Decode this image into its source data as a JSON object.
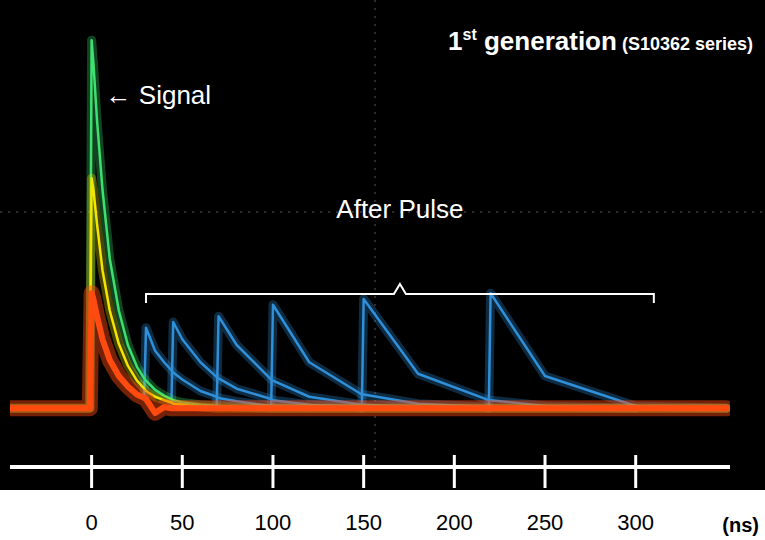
{
  "chart_data": {
    "type": "line",
    "title": "1st generation",
    "subtitle": "(S10362 series)",
    "x_label": "(ns)",
    "annotations": [
      {
        "text": "← Signal"
      },
      {
        "text": "After Pulse",
        "x_range": [
          30,
          310
        ]
      }
    ],
    "x": [
      -45,
      -10,
      -1,
      0,
      1,
      3,
      6,
      10,
      15,
      20,
      25,
      29,
      30,
      35,
      40,
      44,
      45,
      50,
      60,
      69,
      70,
      80,
      99,
      100,
      120,
      149,
      150,
      180,
      219,
      220,
      250,
      300,
      350
    ],
    "series": [
      {
        "color": "#2f8fd8",
        "values": [
          null,
          null,
          null,
          null,
          null,
          null,
          null,
          null,
          null,
          null,
          null,
          0.1,
          0.7,
          0.5,
          0.4,
          0.33,
          0.31,
          0.25,
          0.15,
          0.1,
          0.09,
          0.06,
          0.02,
          0.02,
          0.01,
          null,
          null,
          null,
          null,
          null,
          null,
          null,
          null
        ]
      },
      {
        "color": "#2f8fd8",
        "values": [
          null,
          null,
          null,
          null,
          null,
          null,
          null,
          null,
          null,
          null,
          null,
          null,
          null,
          null,
          null,
          0.05,
          0.75,
          0.6,
          0.4,
          0.27,
          0.26,
          0.17,
          0.08,
          0.07,
          0.03,
          0.01,
          null,
          null,
          null,
          null,
          null,
          null,
          null
        ]
      },
      {
        "color": "#2f8fd8",
        "values": [
          null,
          null,
          null,
          null,
          null,
          null,
          null,
          null,
          null,
          null,
          null,
          null,
          null,
          null,
          null,
          null,
          null,
          null,
          null,
          0.03,
          0.8,
          0.55,
          0.25,
          0.24,
          0.1,
          0.03,
          0.03,
          0.01,
          null,
          null,
          null,
          null,
          null
        ]
      },
      {
        "color": "#2f8fd8",
        "values": [
          null,
          null,
          null,
          null,
          null,
          null,
          null,
          null,
          null,
          null,
          null,
          null,
          null,
          null,
          null,
          null,
          null,
          null,
          null,
          null,
          null,
          null,
          0.01,
          0.9,
          0.4,
          0.12,
          0.12,
          0.04,
          0.01,
          null,
          null,
          null,
          null
        ]
      },
      {
        "color": "#2f8fd8",
        "values": [
          null,
          null,
          null,
          null,
          null,
          null,
          null,
          null,
          null,
          null,
          null,
          null,
          null,
          null,
          null,
          null,
          null,
          null,
          null,
          null,
          null,
          null,
          null,
          null,
          null,
          0,
          0.95,
          0.3,
          0.07,
          0.07,
          0.02,
          0,
          null
        ]
      },
      {
        "color": "#2f8fd8",
        "values": [
          null,
          null,
          null,
          null,
          null,
          null,
          null,
          null,
          null,
          null,
          null,
          null,
          null,
          null,
          null,
          null,
          null,
          null,
          null,
          null,
          null,
          null,
          null,
          null,
          null,
          null,
          null,
          null,
          0,
          1.0,
          0.28,
          0.02,
          0
        ]
      },
      {
        "color": "#3ee070",
        "values": [
          0,
          0,
          0,
          3.2,
          3.0,
          2.5,
          1.9,
          1.3,
          0.85,
          0.55,
          0.36,
          0.26,
          0.24,
          0.16,
          0.11,
          0.08,
          0.07,
          0.05,
          0.03,
          0.02,
          0.02,
          0.01,
          0,
          0,
          0,
          0,
          0,
          0,
          0,
          0,
          0,
          0,
          0
        ]
      },
      {
        "color": "#f2e600",
        "values": [
          0,
          0,
          0,
          2.0,
          1.9,
          1.6,
          1.2,
          0.85,
          0.56,
          0.37,
          0.24,
          0.17,
          0.15,
          0.1,
          0.07,
          0.05,
          0.04,
          0.03,
          0.01,
          0,
          0,
          0,
          0,
          0,
          0,
          0,
          0,
          0,
          0,
          0,
          0,
          0,
          0
        ]
      },
      {
        "color": "#ff4a10",
        "values": [
          0,
          0,
          0,
          1.0,
          0.95,
          0.8,
          0.6,
          0.42,
          0.28,
          0.19,
          0.12,
          0.09,
          0.08,
          -0.04,
          0.01,
          0,
          0,
          0,
          0,
          0,
          0,
          0,
          0,
          0,
          0,
          0,
          0,
          0,
          0,
          0,
          0,
          0,
          0
        ]
      }
    ],
    "xlim": [
      -45,
      352
    ],
    "ylim": [
      -0.45,
      3.55
    ],
    "xticks": [
      0,
      50,
      100,
      150,
      200,
      250,
      300
    ],
    "tick_labels": "x",
    "grid": false
  }
}
